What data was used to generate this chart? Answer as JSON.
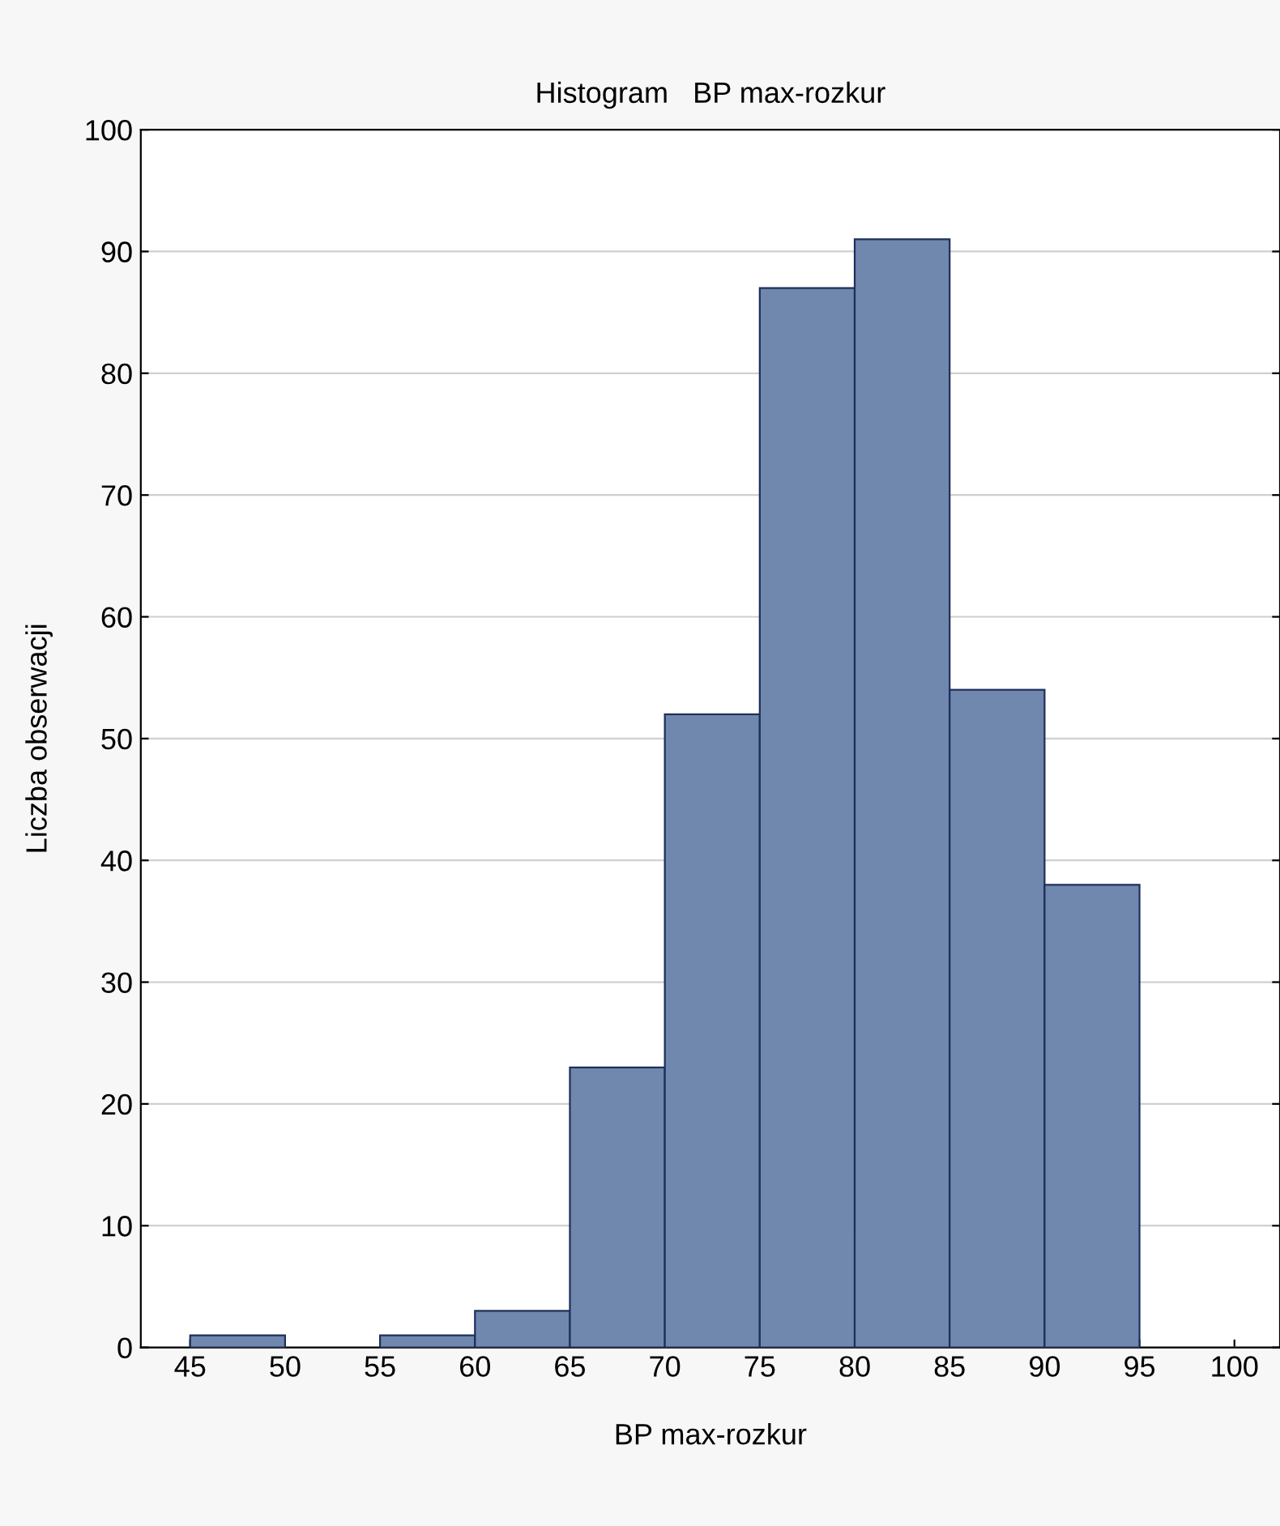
{
  "chart_data": {
    "type": "histogram",
    "title": "Histogram   BP max-rozkur",
    "xlabel": "BP max-rozkur",
    "ylabel": "Liczba obserwacji",
    "bins": [
      45,
      50,
      55,
      60,
      65,
      70,
      75,
      80,
      85,
      90,
      95,
      100
    ],
    "values": [
      1,
      0,
      1,
      3,
      23,
      52,
      87,
      91,
      54,
      38,
      0
    ],
    "color": "#7088ae",
    "xlim": [
      42.4,
      102.4
    ],
    "xticks": [
      45,
      50,
      55,
      60,
      65,
      70,
      75,
      80,
      85,
      90,
      95,
      100
    ],
    "ylim": [
      0,
      100
    ],
    "yticks": [
      0,
      10,
      20,
      30,
      40,
      50,
      60,
      70,
      80,
      90,
      100
    ],
    "grid": "y",
    "legend": false
  }
}
